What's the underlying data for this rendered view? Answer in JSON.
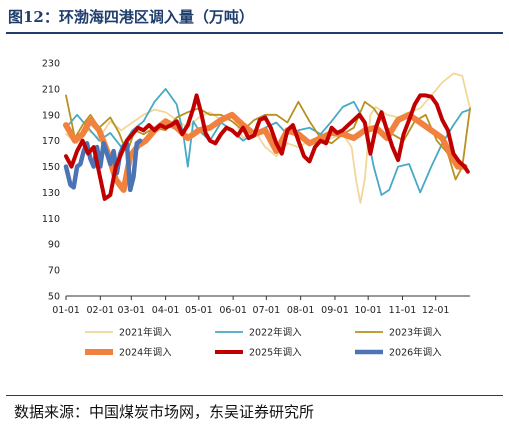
{
  "figure": {
    "title": "图12：环渤海四港区调入量（万吨）",
    "source": "数据来源：中国煤炭市场网，东吴证券研究所"
  },
  "chart_data": {
    "type": "line",
    "title": "环渤海四港区调入量（万吨）",
    "xlabel": "",
    "ylabel": "",
    "ylim": [
      50,
      230
    ],
    "yticks": [
      50,
      70,
      90,
      110,
      130,
      150,
      170,
      190,
      210,
      230
    ],
    "x_range_days": [
      0,
      365
    ],
    "x_tick_labels": [
      "01-01",
      "02-01",
      "03-01",
      "04-01",
      "05-01",
      "06-01",
      "07-01",
      "08-01",
      "09-01",
      "10-01",
      "11-01",
      "12-01"
    ],
    "x_tick_days": [
      0,
      31,
      59,
      90,
      120,
      151,
      181,
      212,
      243,
      273,
      304,
      334
    ],
    "grid": false,
    "legend_position": "bottom",
    "series": [
      {
        "name": "2021年调入",
        "color": "#f1d79a",
        "points": [
          [
            0,
            175
          ],
          [
            10,
            168
          ],
          [
            20,
            178
          ],
          [
            30,
            172
          ],
          [
            40,
            185
          ],
          [
            50,
            178
          ],
          [
            60,
            184
          ],
          [
            70,
            190
          ],
          [
            80,
            194
          ],
          [
            90,
            192
          ],
          [
            100,
            186
          ],
          [
            110,
            180
          ],
          [
            120,
            188
          ],
          [
            130,
            192
          ],
          [
            140,
            186
          ],
          [
            150,
            190
          ],
          [
            160,
            172
          ],
          [
            170,
            178
          ],
          [
            180,
            165
          ],
          [
            190,
            158
          ],
          [
            200,
            168
          ],
          [
            210,
            165
          ],
          [
            220,
            170
          ],
          [
            230,
            168
          ],
          [
            240,
            172
          ],
          [
            250,
            175
          ],
          [
            258,
            165
          ],
          [
            262,
            140
          ],
          [
            266,
            122
          ],
          [
            270,
            140
          ],
          [
            275,
            190
          ],
          [
            280,
            196
          ],
          [
            290,
            190
          ],
          [
            300,
            188
          ],
          [
            310,
            192
          ],
          [
            320,
            195
          ],
          [
            330,
            205
          ],
          [
            340,
            215
          ],
          [
            350,
            222
          ],
          [
            358,
            220
          ],
          [
            365,
            195
          ]
        ]
      },
      {
        "name": "2022年调入",
        "color": "#48a9c5",
        "points": [
          [
            0,
            180
          ],
          [
            10,
            190
          ],
          [
            20,
            180
          ],
          [
            30,
            170
          ],
          [
            40,
            176
          ],
          [
            50,
            165
          ],
          [
            60,
            178
          ],
          [
            70,
            185
          ],
          [
            80,
            200
          ],
          [
            90,
            210
          ],
          [
            100,
            198
          ],
          [
            106,
            175
          ],
          [
            110,
            150
          ],
          [
            115,
            185
          ],
          [
            120,
            178
          ],
          [
            130,
            170
          ],
          [
            140,
            184
          ],
          [
            150,
            178
          ],
          [
            160,
            170
          ],
          [
            170,
            176
          ],
          [
            180,
            180
          ],
          [
            190,
            184
          ],
          [
            200,
            175
          ],
          [
            210,
            178
          ],
          [
            220,
            180
          ],
          [
            230,
            175
          ],
          [
            240,
            185
          ],
          [
            250,
            196
          ],
          [
            260,
            200
          ],
          [
            270,
            185
          ],
          [
            278,
            150
          ],
          [
            285,
            128
          ],
          [
            292,
            132
          ],
          [
            300,
            150
          ],
          [
            310,
            152
          ],
          [
            320,
            130
          ],
          [
            330,
            150
          ],
          [
            340,
            168
          ],
          [
            350,
            182
          ],
          [
            358,
            192
          ],
          [
            365,
            194
          ]
        ]
      },
      {
        "name": "2023年调入",
        "color": "#b8911f",
        "points": [
          [
            0,
            205
          ],
          [
            8,
            172
          ],
          [
            15,
            182
          ],
          [
            22,
            190
          ],
          [
            30,
            180
          ],
          [
            40,
            188
          ],
          [
            48,
            176
          ],
          [
            55,
            160
          ],
          [
            62,
            178
          ],
          [
            70,
            175
          ],
          [
            80,
            180
          ],
          [
            90,
            178
          ],
          [
            100,
            188
          ],
          [
            110,
            192
          ],
          [
            120,
            195
          ],
          [
            130,
            190
          ],
          [
            140,
            190
          ],
          [
            150,
            185
          ],
          [
            160,
            178
          ],
          [
            170,
            186
          ],
          [
            180,
            190
          ],
          [
            190,
            190
          ],
          [
            200,
            184
          ],
          [
            210,
            200
          ],
          [
            220,
            185
          ],
          [
            230,
            172
          ],
          [
            240,
            168
          ],
          [
            250,
            175
          ],
          [
            260,
            180
          ],
          [
            270,
            200
          ],
          [
            278,
            195
          ],
          [
            286,
            185
          ],
          [
            295,
            175
          ],
          [
            305,
            170
          ],
          [
            315,
            185
          ],
          [
            325,
            190
          ],
          [
            335,
            170
          ],
          [
            345,
            160
          ],
          [
            352,
            140
          ],
          [
            358,
            150
          ],
          [
            365,
            195
          ]
        ]
      },
      {
        "name": "2024年调入",
        "color": "#f0813f",
        "points": [
          [
            0,
            182
          ],
          [
            8,
            170
          ],
          [
            15,
            175
          ],
          [
            22,
            186
          ],
          [
            30,
            178
          ],
          [
            38,
            160
          ],
          [
            45,
            140
          ],
          [
            52,
            132
          ],
          [
            58,
            158
          ],
          [
            65,
            166
          ],
          [
            72,
            170
          ],
          [
            80,
            178
          ],
          [
            90,
            185
          ],
          [
            100,
            180
          ],
          [
            110,
            172
          ],
          [
            120,
            178
          ],
          [
            130,
            180
          ],
          [
            140,
            186
          ],
          [
            150,
            190
          ],
          [
            160,
            182
          ],
          [
            170,
            175
          ],
          [
            180,
            178
          ],
          [
            190,
            162
          ],
          [
            200,
            178
          ],
          [
            210,
            175
          ],
          [
            220,
            168
          ],
          [
            230,
            172
          ],
          [
            240,
            176
          ],
          [
            250,
            175
          ],
          [
            260,
            172
          ],
          [
            270,
            178
          ],
          [
            280,
            180
          ],
          [
            290,
            172
          ],
          [
            300,
            186
          ],
          [
            310,
            190
          ],
          [
            320,
            184
          ],
          [
            330,
            178
          ],
          [
            340,
            172
          ],
          [
            348,
            158
          ],
          [
            354,
            150
          ],
          [
            360,
            150
          ]
        ]
      },
      {
        "name": "2025年调入",
        "color": "#c00000",
        "points": [
          [
            0,
            158
          ],
          [
            5,
            150
          ],
          [
            10,
            162
          ],
          [
            15,
            170
          ],
          [
            20,
            160
          ],
          [
            25,
            165
          ],
          [
            30,
            145
          ],
          [
            35,
            125
          ],
          [
            40,
            128
          ],
          [
            45,
            150
          ],
          [
            50,
            160
          ],
          [
            55,
            170
          ],
          [
            60,
            175
          ],
          [
            65,
            180
          ],
          [
            70,
            178
          ],
          [
            75,
            182
          ],
          [
            80,
            178
          ],
          [
            85,
            182
          ],
          [
            90,
            180
          ],
          [
            95,
            182
          ],
          [
            100,
            185
          ],
          [
            105,
            175
          ],
          [
            110,
            182
          ],
          [
            115,
            195
          ],
          [
            118,
            205
          ],
          [
            122,
            192
          ],
          [
            126,
            176
          ],
          [
            130,
            170
          ],
          [
            135,
            168
          ],
          [
            140,
            175
          ],
          [
            145,
            180
          ],
          [
            150,
            178
          ],
          [
            155,
            174
          ],
          [
            160,
            180
          ],
          [
            165,
            172
          ],
          [
            170,
            174
          ],
          [
            175,
            186
          ],
          [
            180,
            188
          ],
          [
            185,
            180
          ],
          [
            190,
            168
          ],
          [
            195,
            160
          ],
          [
            200,
            178
          ],
          [
            205,
            182
          ],
          [
            210,
            170
          ],
          [
            215,
            158
          ],
          [
            220,
            154
          ],
          [
            225,
            165
          ],
          [
            230,
            170
          ],
          [
            235,
            168
          ],
          [
            240,
            180
          ],
          [
            245,
            176
          ],
          [
            250,
            178
          ],
          [
            255,
            182
          ],
          [
            260,
            186
          ],
          [
            265,
            190
          ],
          [
            270,
            184
          ],
          [
            275,
            160
          ],
          [
            280,
            180
          ],
          [
            285,
            192
          ],
          [
            290,
            178
          ],
          [
            295,
            165
          ],
          [
            300,
            155
          ],
          [
            305,
            175
          ],
          [
            310,
            186
          ],
          [
            315,
            198
          ],
          [
            320,
            205
          ],
          [
            325,
            205
          ],
          [
            330,
            204
          ],
          [
            335,
            198
          ],
          [
            340,
            186
          ],
          [
            345,
            178
          ],
          [
            350,
            160
          ],
          [
            355,
            154
          ],
          [
            360,
            150
          ],
          [
            363,
            146
          ]
        ]
      },
      {
        "name": "2026年调入",
        "color": "#4a74b4",
        "points": [
          [
            0,
            150
          ],
          [
            4,
            136
          ],
          [
            7,
            134
          ],
          [
            10,
            150
          ],
          [
            13,
            152
          ],
          [
            16,
            162
          ],
          [
            19,
            168
          ],
          [
            22,
            156
          ],
          [
            25,
            150
          ],
          [
            28,
            165
          ],
          [
            31,
            150
          ],
          [
            34,
            168
          ],
          [
            37,
            160
          ],
          [
            40,
            152
          ],
          [
            43,
            162
          ],
          [
            46,
            145
          ],
          [
            49,
            160
          ],
          [
            52,
            166
          ],
          [
            55,
            168
          ],
          [
            58,
            132
          ],
          [
            61,
            142
          ],
          [
            64,
            168
          ],
          [
            67,
            170
          ]
        ]
      }
    ]
  }
}
